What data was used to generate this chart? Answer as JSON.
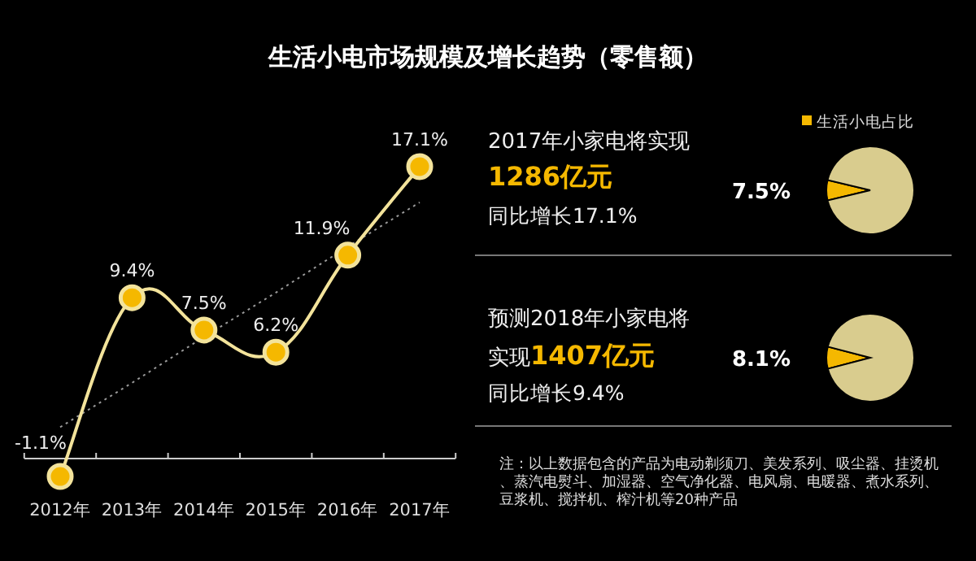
{
  "chart_data": [
    {
      "type": "line",
      "title": "生活小电市场规模及增长趋势（零售额）",
      "categories": [
        "2012年",
        "2013年",
        "2014年",
        "2015年",
        "2016年",
        "2017年"
      ],
      "series": [
        {
          "type": "line",
          "color": "#f3e39b",
          "marker": "circle",
          "values": [
            -1.1,
            9.4,
            7.5,
            6.2,
            11.9,
            17.1
          ],
          "value_labels": [
            "-1.1%",
            "9.4%",
            "7.5%",
            "6.2%",
            "11.9%",
            "17.1%"
          ]
        },
        {
          "type": "line",
          "color": "#9a9a9a",
          "line_style": "dotted",
          "values": [
            1.8,
            4.4,
            7.1,
            9.7,
            12.4,
            15.0
          ]
        }
      ]
    },
    {
      "type": "pie",
      "categories": [
        "生活小电占比",
        null
      ],
      "values": [
        7.5,
        92.5
      ],
      "colors": [
        "#f5b800",
        "#d9cc8e"
      ],
      "value_labels": [
        "7.5%",
        null
      ],
      "legend": "top left"
    },
    {
      "type": "pie",
      "categories": [
        null,
        null
      ],
      "values": [
        8.1,
        91.9
      ],
      "colors": [
        "#f5b800",
        "#d9cc8e"
      ],
      "value_labels": [
        "8.1%",
        null
      ]
    },
    {
      "type": "other",
      "annotations": [
        "2017年小家电将实现",
        "1286亿元",
        "同比增长17.1%",
        "预测2018年小家电将",
        "实现",
        "1407亿元",
        "同比增长9.4%",
        "注：以上数据包含的产品为电动剃须刀、美发系列、吸尘器、挂烫机、蒸汽电熨斗、加湿器、空气净化器、电风扇、电暖器、煮水系列、豆浆机、搅拌机、榨汁机等20种产品"
      ]
    }
  ]
}
